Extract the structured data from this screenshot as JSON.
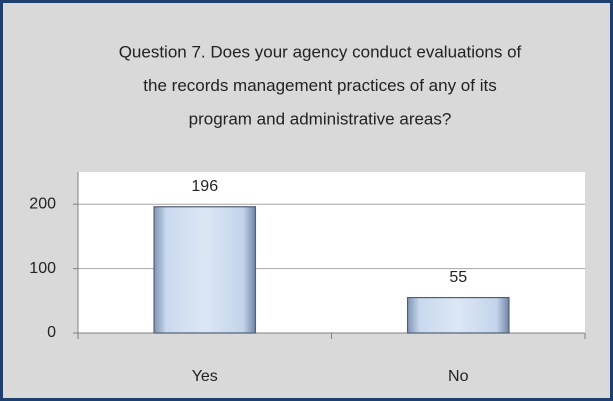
{
  "chart_data": {
    "type": "bar",
    "title": [
      "Question 7. Does your agency conduct evaluations of",
      "the records management practices of any of its",
      "program and administrative areas?"
    ],
    "categories": [
      "Yes",
      "No"
    ],
    "values": [
      196,
      55
    ],
    "color": "#b8cce4",
    "ylim": [
      0,
      250
    ],
    "yticks": [
      0,
      100,
      200
    ],
    "grid": true
  }
}
